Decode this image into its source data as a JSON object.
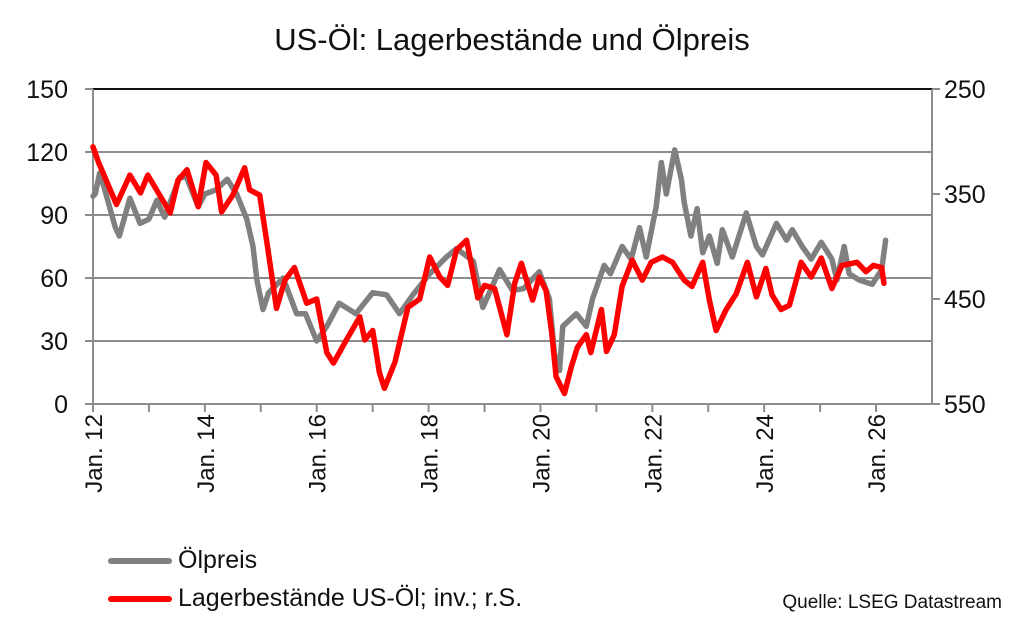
{
  "chart_data": {
    "type": "line",
    "title": "US-Öl: Lagerbestände und Ölpreis",
    "xlabel": "",
    "ylabel": "",
    "xlim": [
      2012,
      2027
    ],
    "x_tick_labels": [
      "Jan. 12",
      "Jan. 14",
      "Jan. 16",
      "Jan. 18",
      "Jan. 20",
      "Jan. 22",
      "Jan. 24",
      "Jan. 26"
    ],
    "x_tick_values": [
      2012,
      2014,
      2016,
      2018,
      2020,
      2022,
      2024,
      2026
    ],
    "y_left": {
      "lim": [
        0,
        150
      ],
      "ticks": [
        0,
        30,
        60,
        90,
        120,
        150
      ]
    },
    "y_right": {
      "lim": [
        250,
        550
      ],
      "inverted": true,
      "ticks": [
        250,
        350,
        450,
        550
      ]
    },
    "grid": true,
    "legend_position": "bottom-left",
    "series": [
      {
        "name": "Ölpreis",
        "axis": "left",
        "color": "#808080",
        "x": [
          2012.0,
          2012.04,
          2012.12,
          2012.2,
          2012.4,
          2012.47,
          2012.66,
          2012.84,
          2013.0,
          2013.14,
          2013.28,
          2013.55,
          2013.67,
          2013.88,
          2014.0,
          2014.2,
          2014.4,
          2014.57,
          2014.75,
          2014.86,
          2014.93,
          2015.04,
          2015.14,
          2015.4,
          2015.64,
          2015.8,
          2016.0,
          2016.18,
          2016.4,
          2016.7,
          2017.0,
          2017.25,
          2017.48,
          2017.72,
          2018.02,
          2018.32,
          2018.5,
          2018.8,
          2018.97,
          2019.27,
          2019.5,
          2019.7,
          2019.98,
          2020.16,
          2020.25,
          2020.34,
          2020.4,
          2020.64,
          2020.82,
          2020.93,
          2021.14,
          2021.25,
          2021.46,
          2021.62,
          2021.77,
          2021.89,
          2022.07,
          2022.16,
          2022.25,
          2022.4,
          2022.52,
          2022.57,
          2022.69,
          2022.8,
          2022.9,
          2023.02,
          2023.16,
          2023.25,
          2023.43,
          2023.68,
          2023.86,
          2023.97,
          2024.22,
          2024.4,
          2024.5,
          2024.68,
          2024.84,
          2025.02,
          2025.21,
          2025.3,
          2025.43,
          2025.52,
          2025.7,
          2025.93,
          2026.1,
          2026.17
        ],
        "values": [
          99,
          100,
          110,
          103,
          84,
          80,
          98,
          86,
          88,
          97,
          89,
          108,
          108,
          94,
          100,
          102,
          107,
          100,
          88,
          75,
          59,
          45,
          53,
          60,
          43,
          43,
          30,
          37,
          48,
          43,
          53,
          52,
          43,
          52,
          62,
          70,
          74,
          68,
          46,
          64,
          54,
          55,
          63,
          50,
          24,
          16,
          37,
          43,
          37,
          50,
          66,
          62,
          75,
          69,
          84,
          70,
          94,
          115,
          100,
          121,
          107,
          96,
          80,
          93,
          72,
          80,
          67,
          83,
          70,
          91,
          75,
          71,
          86,
          78,
          83,
          75,
          69,
          77,
          69,
          59,
          75,
          62,
          59,
          57,
          64,
          78
        ]
      },
      {
        "name": "Lagerbestände US-Öl; inv.; r.S.",
        "axis": "right",
        "color": "#ff0000",
        "x": [
          2012.0,
          2012.1,
          2012.42,
          2012.66,
          2012.85,
          2012.98,
          2013.38,
          2013.52,
          2013.68,
          2013.88,
          2014.02,
          2014.2,
          2014.3,
          2014.5,
          2014.71,
          2014.8,
          2014.98,
          2015.12,
          2015.28,
          2015.43,
          2015.6,
          2015.82,
          2016.0,
          2016.18,
          2016.3,
          2016.53,
          2016.77,
          2016.86,
          2017.0,
          2017.12,
          2017.21,
          2017.4,
          2017.63,
          2017.84,
          2018.02,
          2018.2,
          2018.34,
          2018.5,
          2018.68,
          2018.88,
          2019.0,
          2019.18,
          2019.4,
          2019.54,
          2019.66,
          2019.86,
          2019.98,
          2020.1,
          2020.2,
          2020.28,
          2020.43,
          2020.55,
          2020.66,
          2020.82,
          2020.9,
          2021.09,
          2021.18,
          2021.32,
          2021.46,
          2021.64,
          2021.82,
          2021.98,
          2022.18,
          2022.36,
          2022.57,
          2022.71,
          2022.9,
          2023.02,
          2023.14,
          2023.32,
          2023.5,
          2023.7,
          2023.86,
          2024.03,
          2024.14,
          2024.3,
          2024.45,
          2024.66,
          2024.84,
          2025.02,
          2025.21,
          2025.39,
          2025.66,
          2025.82,
          2025.95,
          2026.1,
          2026.14
        ],
        "values": [
          305,
          320,
          360,
          332,
          349,
          332,
          368,
          337,
          327,
          362,
          320,
          332,
          367,
          351,
          325,
          346,
          351,
          400,
          459,
          432,
          420,
          454,
          450,
          501,
          511,
          489,
          467,
          489,
          480,
          520,
          535,
          510,
          458,
          450,
          410,
          429,
          437,
          403,
          394,
          449,
          437,
          440,
          484,
          435,
          416,
          451,
          429,
          442,
          482,
          524,
          540,
          515,
          496,
          484,
          501,
          460,
          500,
          484,
          438,
          413,
          432,
          415,
          410,
          415,
          432,
          438,
          415,
          451,
          480,
          460,
          445,
          415,
          448,
          421,
          446,
          460,
          456,
          415,
          429,
          411,
          440,
          418,
          415,
          424,
          418,
          420,
          435
        ]
      }
    ],
    "source": "Quelle: LSEG Datastream"
  }
}
